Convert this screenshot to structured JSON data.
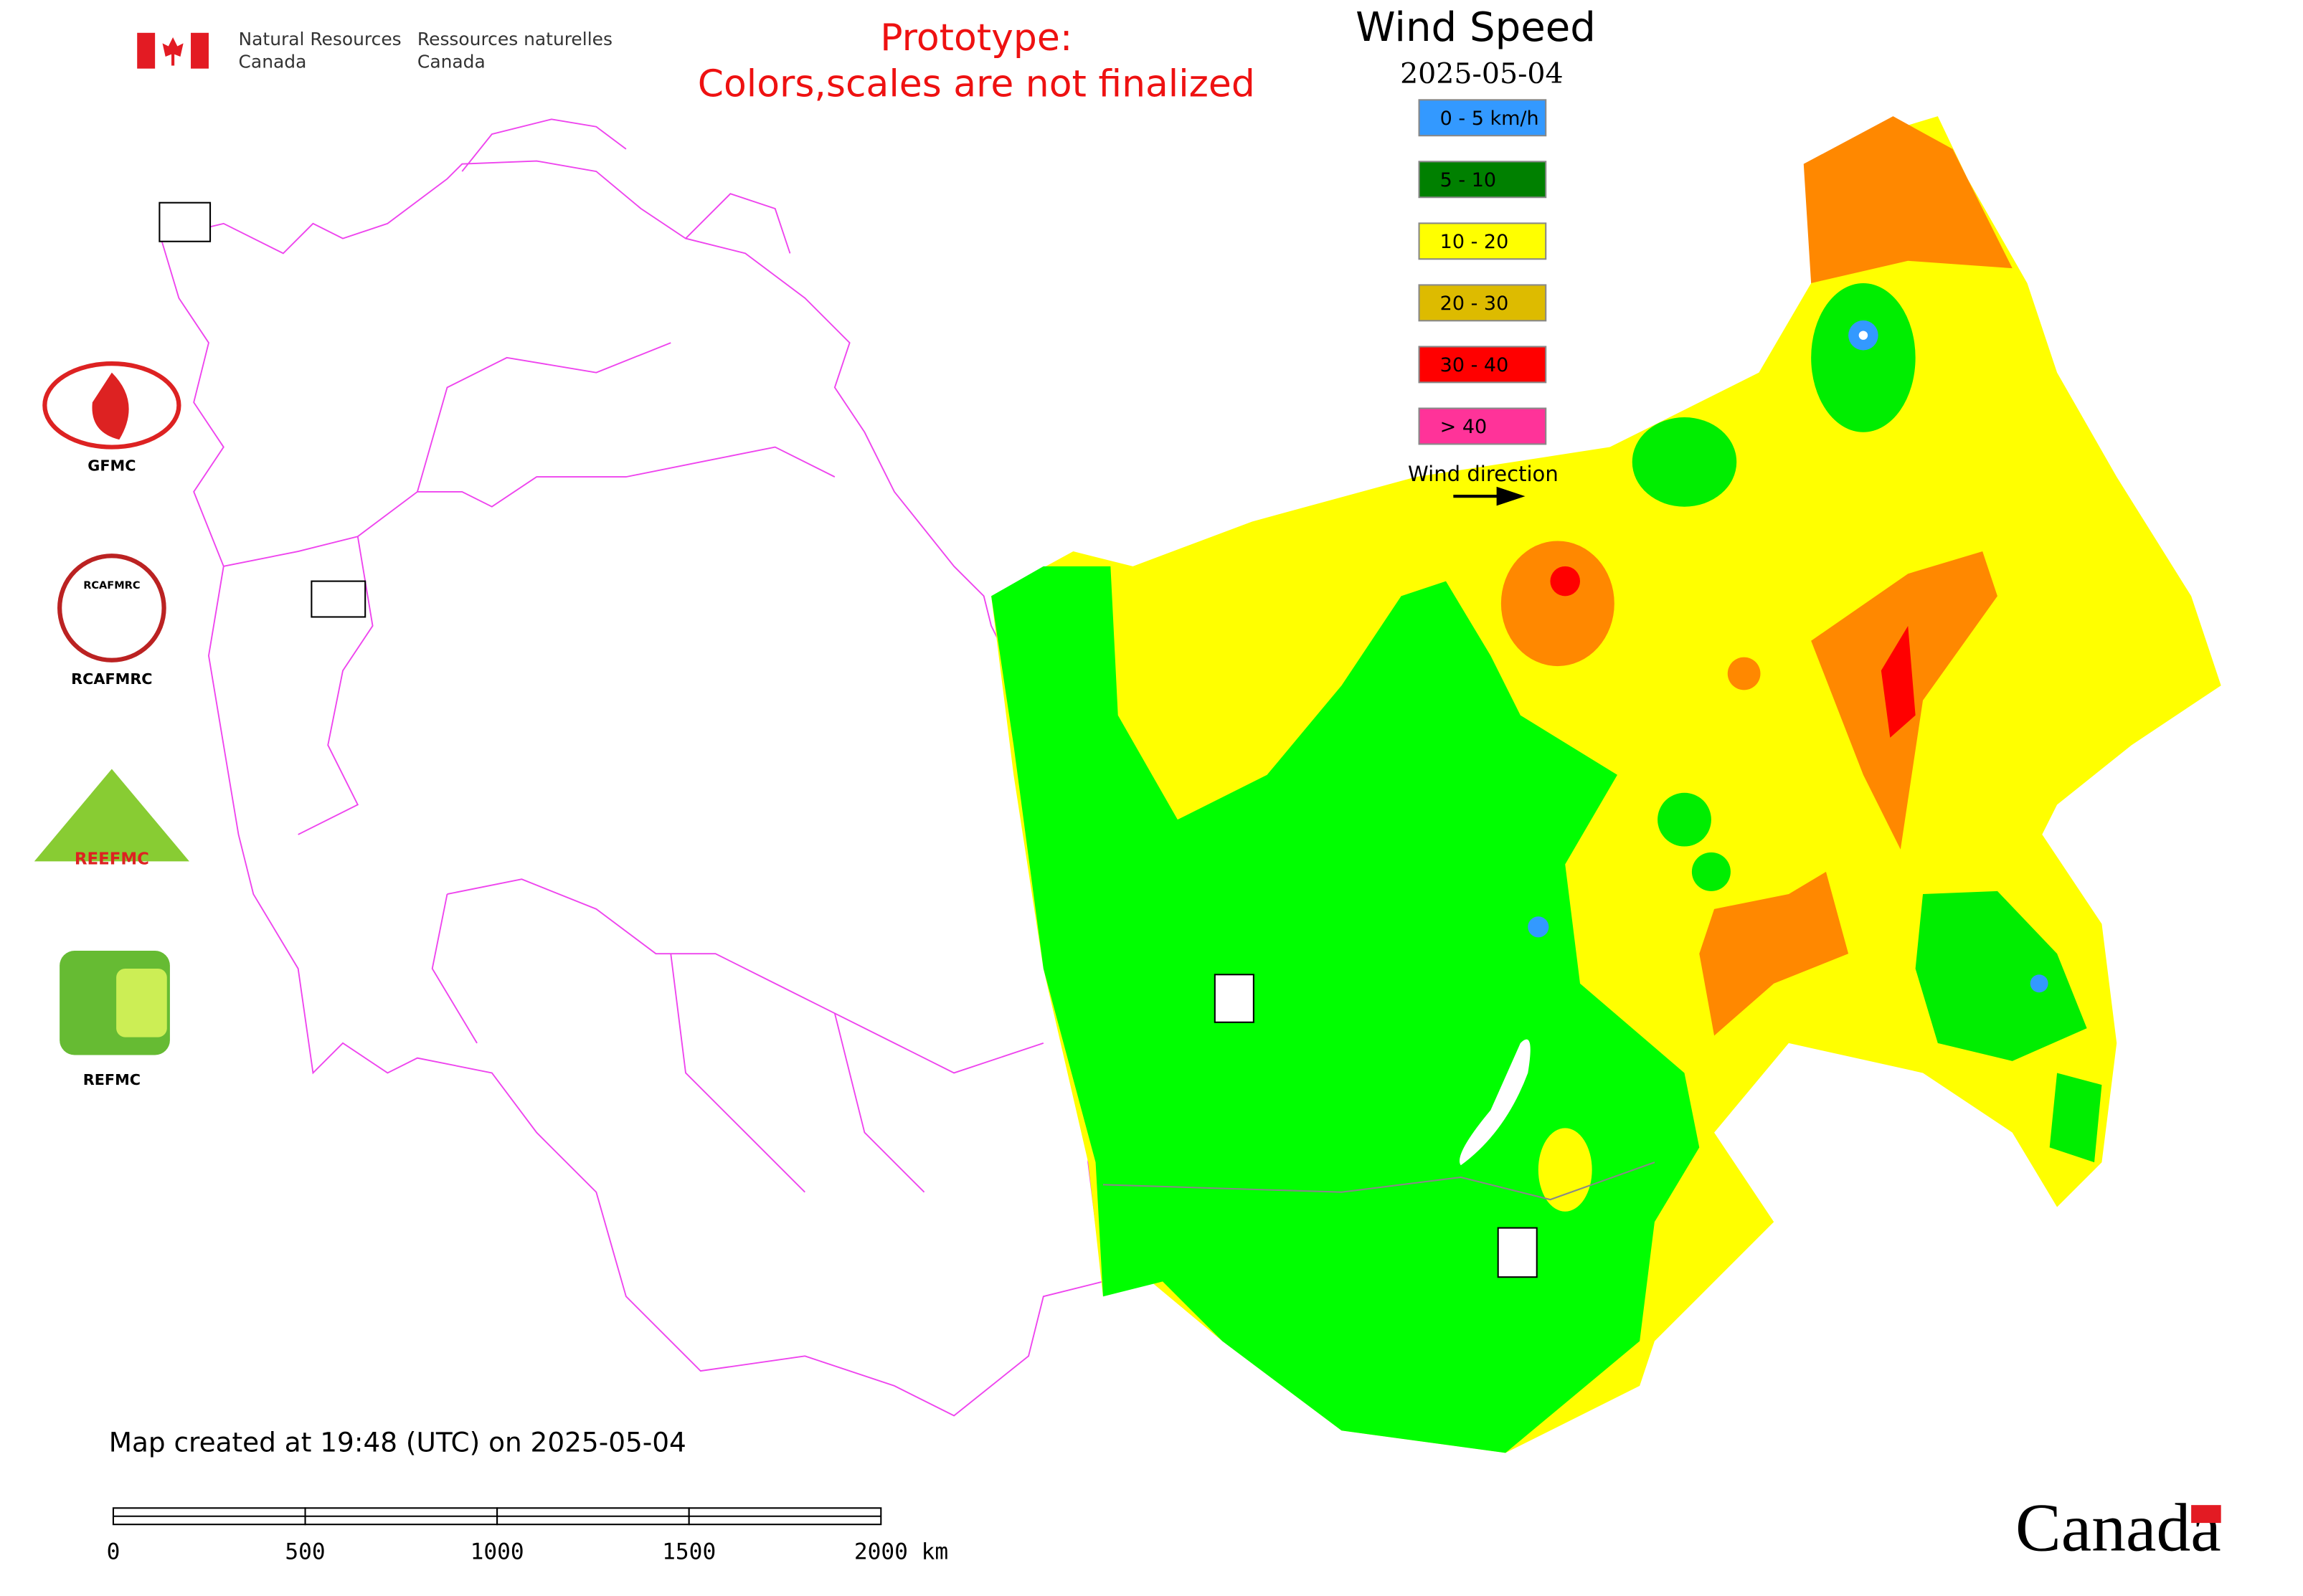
{
  "header": {
    "agency_en": [
      "Natural Resources",
      "Canada"
    ],
    "agency_fr": [
      "Ressources naturelles",
      "Canada"
    ]
  },
  "notice": [
    "Prototype:",
    "Colors,scales are not finalized"
  ],
  "legend": {
    "title": "Wind Speed",
    "date": "2025-05-04",
    "items": [
      {
        "label": "0 - 5 km/h",
        "color": "#3399ff"
      },
      {
        "label": "5 - 10",
        "color": "#008000"
      },
      {
        "label": "10 - 20",
        "color": "#ffff00"
      },
      {
        "label": "20 - 30",
        "color": "#ddbb00"
      },
      {
        "label": "30 - 40",
        "color": "#ff0000"
      },
      {
        "label": "> 40",
        "color": "#ff3399"
      }
    ],
    "wind_direction": "Wind direction"
  },
  "logos": {
    "gfmc": "GFMC",
    "rcafmrc": "RCAFMRC",
    "reefmc": "REEFMC",
    "refmc": "REFMC"
  },
  "footer": {
    "created": "Map created at 19:48 (UTC) on 2025-05-04",
    "scale": [
      "0",
      "500",
      "1000",
      "1500",
      "2000 km"
    ],
    "wordmark": "Canada"
  }
}
